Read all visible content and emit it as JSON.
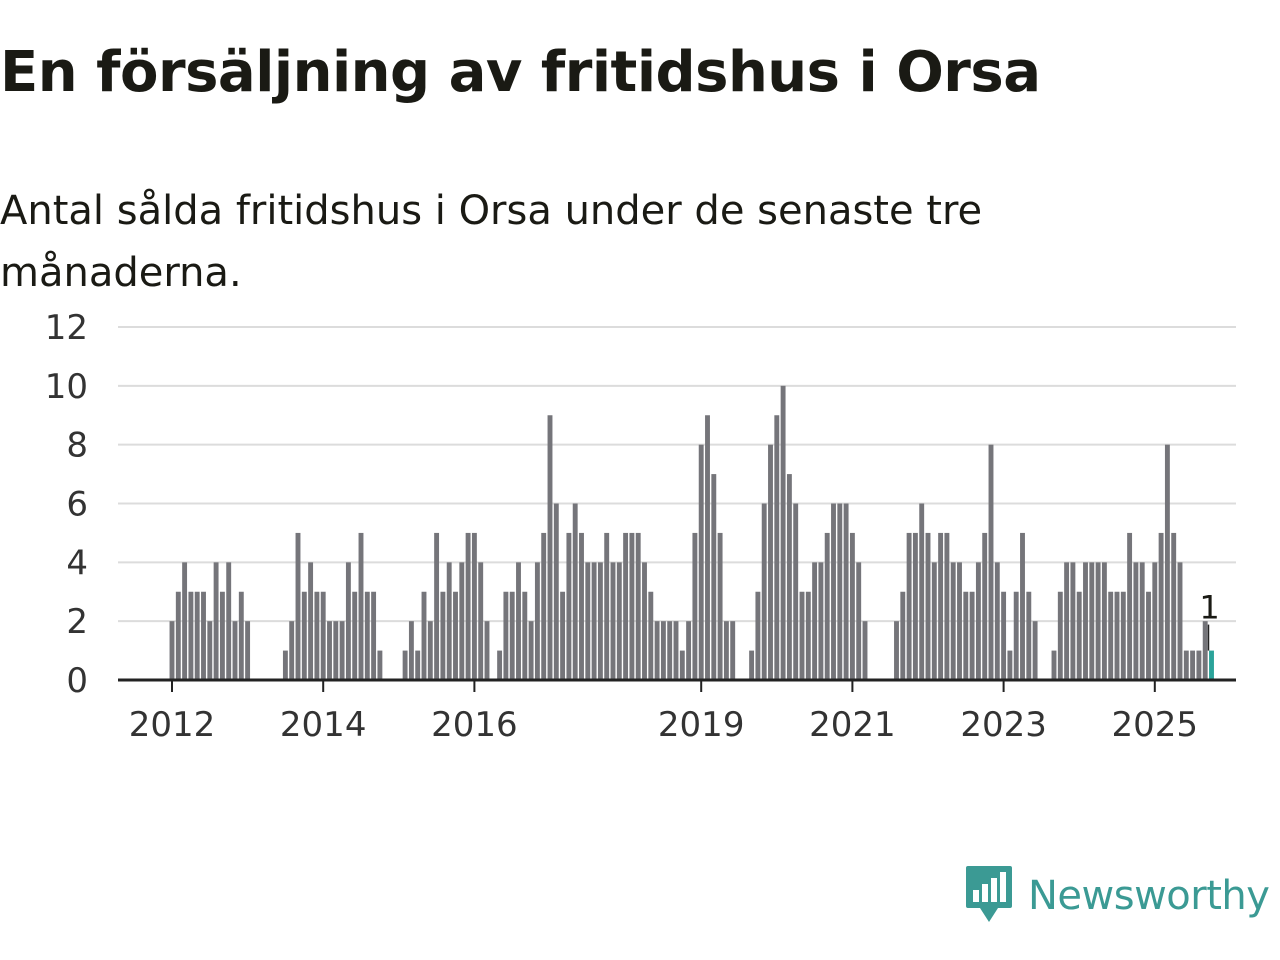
{
  "title": "En försäljning av fritidshus i Orsa",
  "subtitle": "Antal sålda fritidshus i Orsa under de senaste tre månaderna.",
  "brand": {
    "name": "Newsworthy",
    "icon": "newsworthy-logo-icon",
    "color": "#3b9a94"
  },
  "colors": {
    "bar": "#75757a",
    "highlight": "#2ba39a",
    "grid": "#dcdcdc",
    "axis": "#222222"
  },
  "chart_data": {
    "type": "bar",
    "title": "En försäljning av fritidshus i Orsa",
    "subtitle": "Antal sålda fritidshus i Orsa under de senaste tre månaderna.",
    "xlabel": "",
    "ylabel": "",
    "ylim": [
      0,
      12
    ],
    "yticks": [
      0,
      2,
      4,
      6,
      8,
      10,
      12
    ],
    "grid": true,
    "x_tick_labels": [
      {
        "label": "2012",
        "month_index": 0
      },
      {
        "label": "2014",
        "month_index": 24
      },
      {
        "label": "2016",
        "month_index": 48
      },
      {
        "label": "2019",
        "month_index": 84
      },
      {
        "label": "2021",
        "month_index": 108
      },
      {
        "label": "2023",
        "month_index": 132
      },
      {
        "label": "2025",
        "month_index": 156
      }
    ],
    "series": [
      {
        "values": [
          2,
          3,
          4,
          3,
          3,
          3,
          2,
          4,
          3,
          4,
          2,
          3,
          2,
          null,
          null,
          null,
          null,
          null,
          1,
          2,
          5,
          3,
          4,
          3,
          3,
          2,
          2,
          2,
          4,
          3,
          5,
          3,
          3,
          1,
          null,
          null,
          null,
          1,
          2,
          1,
          3,
          2,
          5,
          3,
          4,
          3,
          4,
          5,
          5,
          4,
          2,
          null,
          1,
          3,
          3,
          4,
          3,
          2,
          4,
          5,
          9,
          6,
          3,
          5,
          6,
          5,
          4,
          4,
          4,
          5,
          4,
          4,
          5,
          5,
          5,
          4,
          3,
          2,
          2,
          2,
          2,
          1,
          2,
          5,
          8,
          9,
          7,
          5,
          2,
          2,
          null,
          null,
          1,
          3,
          6,
          8,
          9,
          10,
          7,
          6,
          3,
          3,
          4,
          4,
          5,
          6,
          6,
          6,
          5,
          4,
          2,
          null,
          null,
          null,
          null,
          2,
          3,
          5,
          5,
          6,
          5,
          4,
          5,
          5,
          4,
          4,
          3,
          3,
          4,
          5,
          8,
          4,
          3,
          1,
          3,
          5,
          3,
          2,
          null,
          null,
          1,
          3,
          4,
          4,
          3,
          4,
          4,
          4,
          4,
          3,
          3,
          3,
          5,
          4,
          4,
          3,
          4,
          5,
          8,
          5,
          4,
          1,
          1,
          1,
          2,
          1
        ]
      }
    ],
    "highlight_last": true,
    "annotation": {
      "text": "1",
      "target": "last bar"
    }
  }
}
